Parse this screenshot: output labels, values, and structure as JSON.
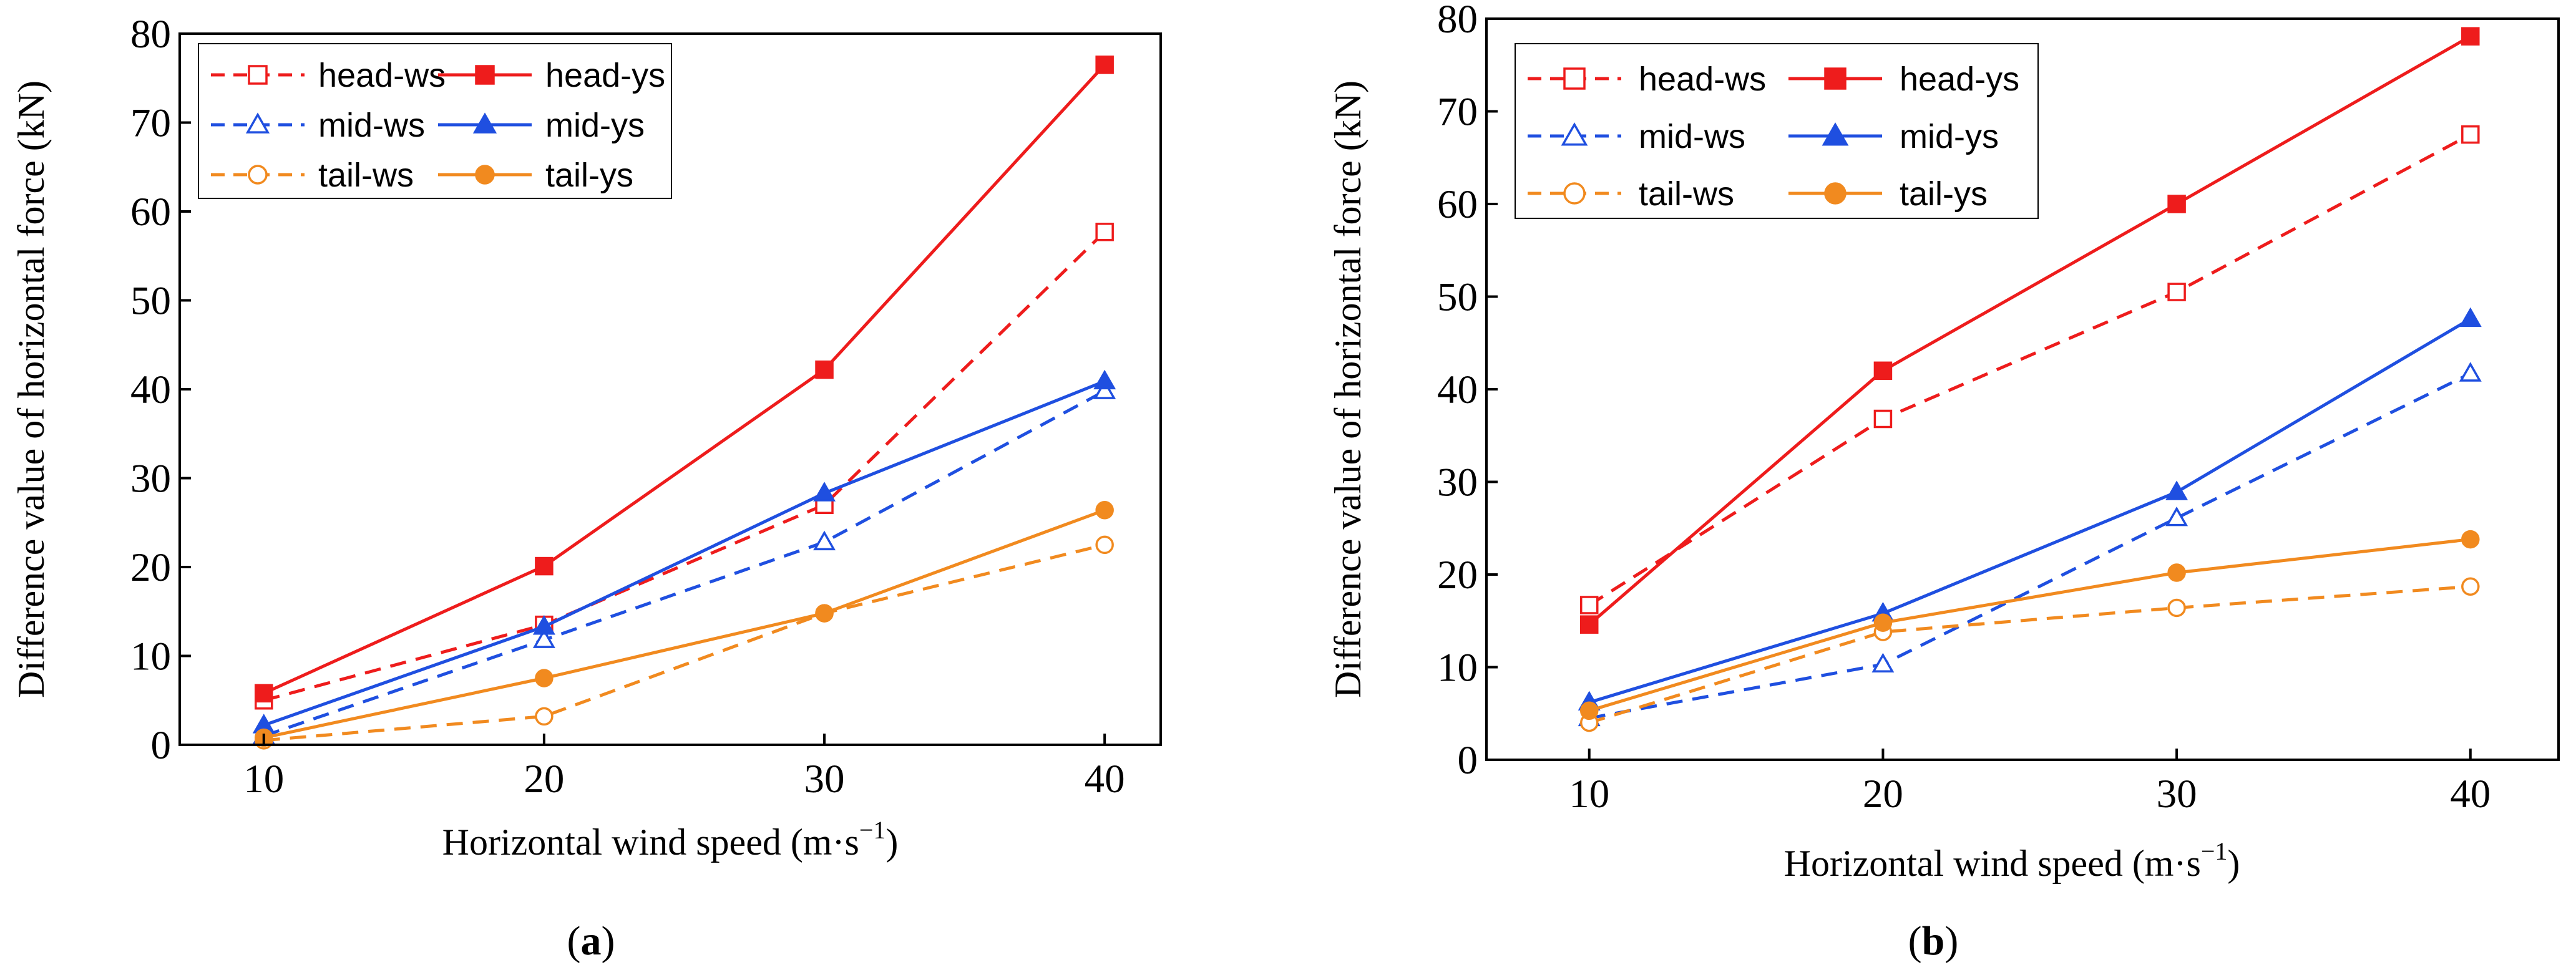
{
  "chart_data": [
    {
      "type": "line",
      "panel": "a",
      "caption_letter": "a",
      "xlabel": "Horizontal wind speed (m·s",
      "xlabel_sup": "−1",
      "xlabel_end": ")",
      "ylabel": "Difference value of horizontal force (kN)",
      "x": [
        10,
        20,
        30,
        40
      ],
      "xticks": [
        "10",
        "20",
        "30",
        "40"
      ],
      "yticks": [
        "0",
        "10",
        "20",
        "30",
        "40",
        "50",
        "60",
        "70",
        "80"
      ],
      "xlim": [
        7,
        42
      ],
      "ylim": [
        0,
        80
      ],
      "legend_position": "top-left",
      "series": [
        {
          "name": "head-ws",
          "color": "#ee1c1c",
          "dash": true,
          "marker": "square",
          "filled": false,
          "values": [
            5,
            13.5,
            27,
            57.7
          ]
        },
        {
          "name": "head-ys",
          "color": "#ee1c1c",
          "dash": false,
          "marker": "square",
          "filled": true,
          "values": [
            5.8,
            20.1,
            42.2,
            76.5
          ]
        },
        {
          "name": "mid-ws",
          "color": "#1f4fe0",
          "dash": true,
          "marker": "triangle",
          "filled": false,
          "values": [
            1,
            11.8,
            22.8,
            39.8
          ]
        },
        {
          "name": "mid-ys",
          "color": "#1f4fe0",
          "dash": false,
          "marker": "triangle",
          "filled": true,
          "values": [
            2.2,
            13.3,
            28.3,
            40.9
          ]
        },
        {
          "name": "tail-ws",
          "color": "#f18a1f",
          "dash": true,
          "marker": "circle",
          "filled": false,
          "values": [
            0.5,
            3.2,
            14.8,
            22.5
          ]
        },
        {
          "name": "tail-ys",
          "color": "#f18a1f",
          "dash": false,
          "marker": "circle",
          "filled": true,
          "values": [
            0.8,
            7.5,
            14.8,
            26.4
          ]
        }
      ]
    },
    {
      "type": "line",
      "panel": "b",
      "caption_letter": "b",
      "xlabel": "Horizontal wind speed (m·s",
      "xlabel_sup": "−1",
      "xlabel_end": ")",
      "ylabel": "Difference value of horizontal force (kN)",
      "x": [
        10,
        20,
        30,
        40
      ],
      "xticks": [
        "10",
        "20",
        "30",
        "40"
      ],
      "yticks": [
        "0",
        "10",
        "20",
        "30",
        "40",
        "50",
        "60",
        "70",
        "80"
      ],
      "xlim": [
        6.5,
        43
      ],
      "ylim": [
        0,
        80
      ],
      "legend_position": "top-left",
      "series": [
        {
          "name": "head-ws",
          "color": "#ee1c1c",
          "dash": true,
          "marker": "square",
          "filled": false,
          "values": [
            16.7,
            36.8,
            50.5,
            67.5
          ]
        },
        {
          "name": "head-ys",
          "color": "#ee1c1c",
          "dash": false,
          "marker": "square",
          "filled": true,
          "values": [
            14.6,
            42,
            60,
            78.1
          ]
        },
        {
          "name": "mid-ws",
          "color": "#1f4fe0",
          "dash": true,
          "marker": "triangle",
          "filled": false,
          "values": [
            4.5,
            10.3,
            26.1,
            41.7
          ]
        },
        {
          "name": "mid-ys",
          "color": "#1f4fe0",
          "dash": false,
          "marker": "triangle",
          "filled": true,
          "values": [
            6.2,
            15.8,
            28.9,
            47.6
          ]
        },
        {
          "name": "tail-ws",
          "color": "#f18a1f",
          "dash": true,
          "marker": "circle",
          "filled": false,
          "values": [
            4,
            13.8,
            16.4,
            18.7
          ]
        },
        {
          "name": "tail-ys",
          "color": "#f18a1f",
          "dash": false,
          "marker": "circle",
          "filled": true,
          "values": [
            5.3,
            14.8,
            20.2,
            23.8
          ]
        }
      ]
    }
  ]
}
